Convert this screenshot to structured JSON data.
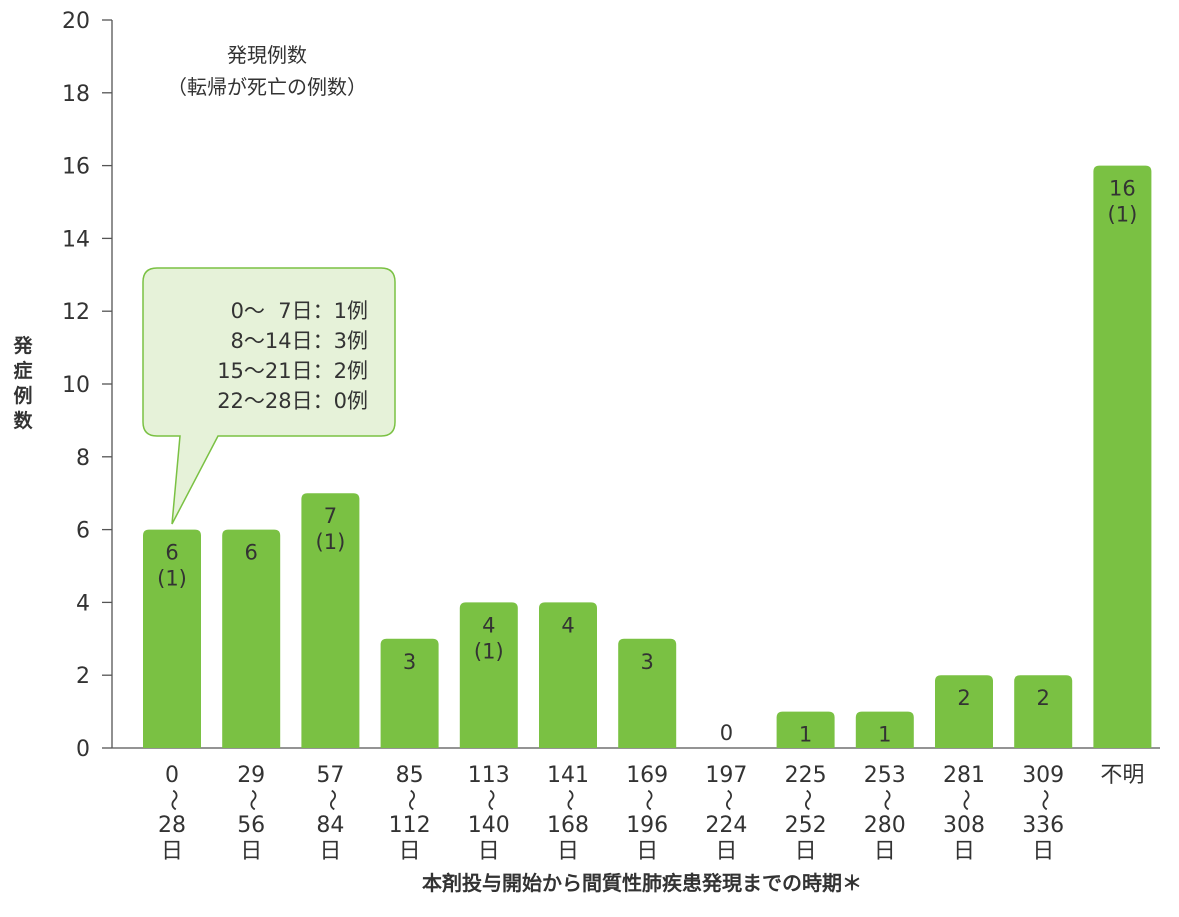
{
  "chart_data": {
    "type": "bar",
    "categories": [
      [
        "0",
        "〜",
        "28",
        "日"
      ],
      [
        "29",
        "〜",
        "56",
        "日"
      ],
      [
        "57",
        "〜",
        "84",
        "日"
      ],
      [
        "85",
        "〜",
        "112",
        "日"
      ],
      [
        "113",
        "〜",
        "140",
        "日"
      ],
      [
        "141",
        "〜",
        "168",
        "日"
      ],
      [
        "169",
        "〜",
        "196",
        "日"
      ],
      [
        "197",
        "〜",
        "224",
        "日"
      ],
      [
        "225",
        "〜",
        "252",
        "日"
      ],
      [
        "253",
        "〜",
        "280",
        "日"
      ],
      [
        "281",
        "〜",
        "308",
        "日"
      ],
      [
        "309",
        "〜",
        "336",
        "日"
      ],
      [
        "不明"
      ]
    ],
    "values": [
      6,
      6,
      7,
      3,
      4,
      4,
      3,
      0,
      1,
      1,
      2,
      2,
      16
    ],
    "deaths": [
      "(1)",
      null,
      "(1)",
      null,
      "(1)",
      null,
      null,
      null,
      null,
      null,
      null,
      null,
      "(1)"
    ],
    "ylim": [
      0,
      20
    ],
    "yticks": [
      0,
      2,
      4,
      6,
      8,
      10,
      12,
      14,
      16,
      18,
      20
    ],
    "ylabel": [
      "発",
      "症",
      "例",
      "数"
    ],
    "xlabel": "本剤投与開始から間質性肺疾患発現までの時期＊",
    "legend": [
      "発現例数",
      "（転帰が死亡の例数）"
    ],
    "callout": [
      "0〜  7日：1例",
      "8〜14日：3例",
      "15〜21日：2例",
      "22〜28日：0例"
    ],
    "bar_color": "#7ac143",
    "callout_fill": "#e6f2d9",
    "callout_stroke": "#7ac143",
    "axis_color": "#555555"
  }
}
